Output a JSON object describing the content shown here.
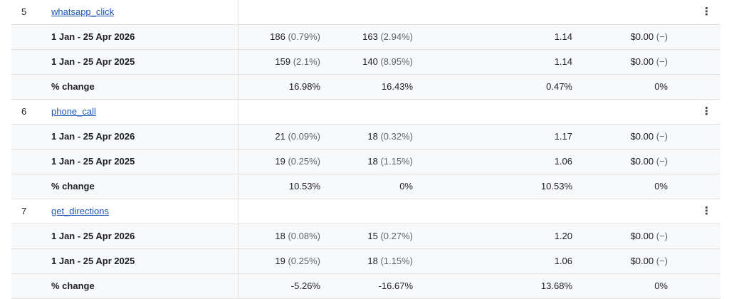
{
  "groups": [
    {
      "index": "5",
      "name": "whatsapp_click",
      "rows": [
        {
          "period": "1 Jan - 25 Apr 2026",
          "c1_main": "186",
          "c1_sub": "(0.79%)",
          "c2_main": "163",
          "c2_sub": "(2.94%)",
          "c3": "1.14",
          "c4_main": "$0.00",
          "c4_sub": "(−)"
        },
        {
          "period": "1 Jan - 25 Apr 2025",
          "c1_main": "159",
          "c1_sub": "(2.1%)",
          "c2_main": "140",
          "c2_sub": "(8.95%)",
          "c3": "1.14",
          "c4_main": "$0.00",
          "c4_sub": "(−)"
        }
      ],
      "change": {
        "label": "% change",
        "c1": "16.98%",
        "c2": "16.43%",
        "c3": "0.47%",
        "c4": "0%"
      }
    },
    {
      "index": "6",
      "name": "phone_call",
      "rows": [
        {
          "period": "1 Jan - 25 Apr 2026",
          "c1_main": "21",
          "c1_sub": "(0.09%)",
          "c2_main": "18",
          "c2_sub": "(0.32%)",
          "c3": "1.17",
          "c4_main": "$0.00",
          "c4_sub": "(−)"
        },
        {
          "period": "1 Jan - 25 Apr 2025",
          "c1_main": "19",
          "c1_sub": "(0.25%)",
          "c2_main": "18",
          "c2_sub": "(1.15%)",
          "c3": "1.06",
          "c4_main": "$0.00",
          "c4_sub": "(−)"
        }
      ],
      "change": {
        "label": "% change",
        "c1": "10.53%",
        "c2": "0%",
        "c3": "10.53%",
        "c4": "0%"
      }
    },
    {
      "index": "7",
      "name": "get_directions",
      "rows": [
        {
          "period": "1 Jan - 25 Apr 2026",
          "c1_main": "18",
          "c1_sub": "(0.08%)",
          "c2_main": "15",
          "c2_sub": "(0.27%)",
          "c3": "1.20",
          "c4_main": "$0.00",
          "c4_sub": "(−)"
        },
        {
          "period": "1 Jan - 25 Apr 2025",
          "c1_main": "19",
          "c1_sub": "(0.25%)",
          "c2_main": "18",
          "c2_sub": "(1.15%)",
          "c3": "1.06",
          "c4_main": "$0.00",
          "c4_sub": "(−)"
        }
      ],
      "change": {
        "label": "% change",
        "c1": "-5.26%",
        "c2": "-16.67%",
        "c3": "13.68%",
        "c4": "0%"
      }
    }
  ],
  "icons": {
    "row_menu": "more-vert-icon"
  }
}
